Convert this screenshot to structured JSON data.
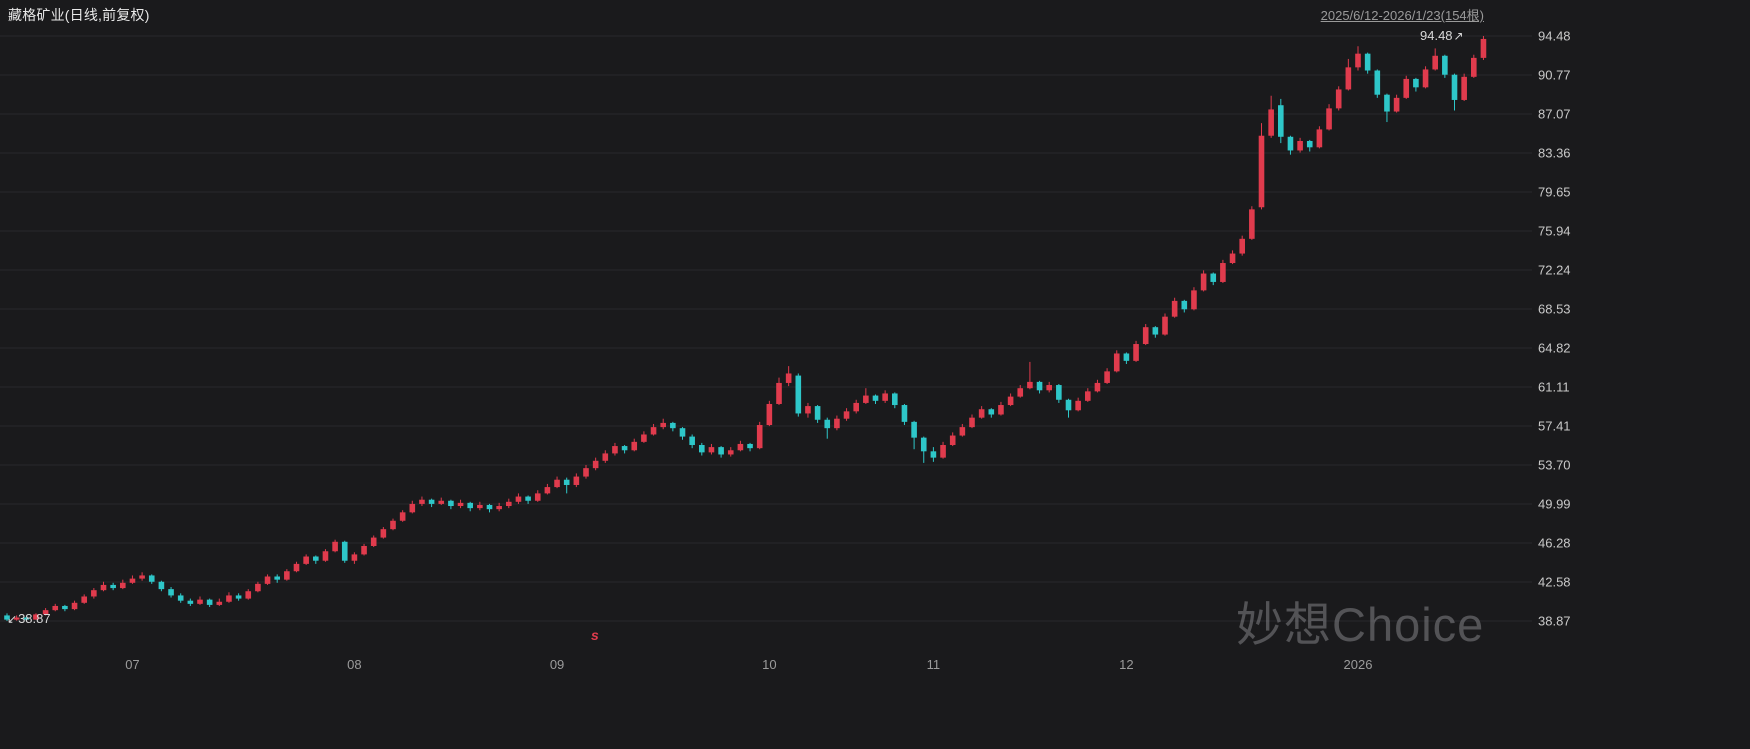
{
  "header": {
    "title": "藏格矿业(日线,前复权)",
    "range": "2025/6/12-2026/1/23(154根)"
  },
  "watermark": "妙想Choice",
  "annotations": {
    "min_label": "38.87",
    "min_arrow": "↙",
    "max_label": "94.48",
    "max_arrow": "↗",
    "event_marker": "s"
  },
  "colors": {
    "up": "#e03b4d",
    "down": "#2ec7c9",
    "background": "#1a1a1c",
    "grid": "#28282c",
    "axis_text": "#c9c9c9",
    "month_text": "#9b9b9b",
    "title_text": "#e8e8e8",
    "link_text": "#9a9a9a",
    "watermark_text": "#8c8c90"
  },
  "chart_data": {
    "type": "candlestick",
    "title": "藏格矿业(日线,前复权)",
    "symbol": "藏格矿业",
    "period": "日线",
    "adjustment": "前复权",
    "date_range": "2025/6/12-2026/1/23",
    "candle_count": 154,
    "y_min": 38.87,
    "y_max": 94.48,
    "min_price": 38.87,
    "max_price": 94.48,
    "grid": true,
    "y_axis_labels": [
      "94.48",
      "90.77",
      "87.07",
      "83.36",
      "79.65",
      "75.94",
      "72.24",
      "68.53",
      "64.82",
      "61.11",
      "57.41",
      "53.70",
      "49.99",
      "46.28",
      "42.58",
      "38.87"
    ],
    "x_tick_labels": [
      "07",
      "08",
      "09",
      "10",
      "11",
      "12",
      "2026"
    ],
    "x_tick_indices": [
      13,
      36,
      57,
      79,
      96,
      116,
      140
    ],
    "ohlc": [
      [
        39.4,
        39.6,
        38.87,
        39.0
      ],
      [
        39.0,
        39.4,
        38.9,
        39.2
      ],
      [
        39.2,
        39.3,
        38.9,
        39.0
      ],
      [
        39.0,
        39.6,
        39.0,
        39.5
      ],
      [
        39.5,
        40.1,
        39.4,
        39.9
      ],
      [
        39.9,
        40.5,
        39.8,
        40.3
      ],
      [
        40.3,
        40.4,
        39.8,
        40.0
      ],
      [
        40.0,
        40.8,
        39.9,
        40.6
      ],
      [
        40.6,
        41.4,
        40.5,
        41.2
      ],
      [
        41.2,
        42.0,
        41.0,
        41.8
      ],
      [
        41.8,
        42.6,
        41.7,
        42.3
      ],
      [
        42.3,
        42.5,
        41.8,
        42.0
      ],
      [
        42.0,
        42.8,
        41.9,
        42.5
      ],
      [
        42.5,
        43.2,
        42.4,
        42.9
      ],
      [
        42.9,
        43.5,
        42.7,
        43.2
      ],
      [
        43.2,
        43.3,
        42.4,
        42.6
      ],
      [
        42.6,
        42.7,
        41.7,
        41.9
      ],
      [
        41.9,
        42.1,
        41.1,
        41.3
      ],
      [
        41.3,
        41.5,
        40.6,
        40.8
      ],
      [
        40.8,
        41.0,
        40.3,
        40.5
      ],
      [
        40.5,
        41.2,
        40.4,
        40.9
      ],
      [
        40.9,
        41.0,
        40.2,
        40.4
      ],
      [
        40.4,
        41.0,
        40.3,
        40.7
      ],
      [
        40.7,
        41.6,
        40.6,
        41.3
      ],
      [
        41.3,
        41.5,
        40.8,
        41.0
      ],
      [
        41.0,
        41.9,
        40.9,
        41.7
      ],
      [
        41.7,
        42.6,
        41.6,
        42.4
      ],
      [
        42.4,
        43.3,
        42.3,
        43.1
      ],
      [
        43.1,
        43.3,
        42.5,
        42.8
      ],
      [
        42.8,
        43.8,
        42.7,
        43.6
      ],
      [
        43.6,
        44.5,
        43.5,
        44.3
      ],
      [
        44.3,
        45.2,
        44.2,
        45.0
      ],
      [
        45.0,
        45.1,
        44.3,
        44.6
      ],
      [
        44.6,
        45.7,
        44.5,
        45.5
      ],
      [
        45.5,
        46.6,
        45.4,
        46.4
      ],
      [
        46.4,
        46.5,
        44.4,
        44.6
      ],
      [
        44.6,
        45.4,
        44.3,
        45.2
      ],
      [
        45.2,
        46.2,
        45.1,
        46.0
      ],
      [
        46.0,
        47.0,
        45.9,
        46.8
      ],
      [
        46.8,
        47.8,
        46.7,
        47.6
      ],
      [
        47.6,
        48.6,
        47.5,
        48.4
      ],
      [
        48.4,
        49.4,
        48.3,
        49.2
      ],
      [
        49.2,
        50.3,
        49.1,
        50.0
      ],
      [
        50.0,
        50.7,
        49.8,
        50.4
      ],
      [
        50.4,
        50.5,
        49.7,
        50.0
      ],
      [
        50.0,
        50.6,
        49.9,
        50.3
      ],
      [
        50.3,
        50.4,
        49.5,
        49.8
      ],
      [
        49.8,
        50.4,
        49.6,
        50.1
      ],
      [
        50.1,
        50.2,
        49.3,
        49.6
      ],
      [
        49.6,
        50.2,
        49.4,
        49.9
      ],
      [
        49.9,
        50.0,
        49.2,
        49.5
      ],
      [
        49.5,
        50.1,
        49.3,
        49.8
      ],
      [
        49.8,
        50.5,
        49.6,
        50.2
      ],
      [
        50.2,
        51.0,
        50.0,
        50.7
      ],
      [
        50.7,
        50.8,
        50.0,
        50.3
      ],
      [
        50.3,
        51.3,
        50.2,
        51.0
      ],
      [
        51.0,
        51.9,
        50.9,
        51.6
      ],
      [
        51.6,
        52.6,
        51.5,
        52.3
      ],
      [
        52.3,
        52.5,
        51.0,
        51.8
      ],
      [
        51.8,
        52.9,
        51.6,
        52.6
      ],
      [
        52.6,
        53.7,
        52.4,
        53.4
      ],
      [
        53.4,
        54.4,
        53.2,
        54.1
      ],
      [
        54.1,
        55.1,
        53.9,
        54.8
      ],
      [
        54.8,
        55.8,
        54.6,
        55.5
      ],
      [
        55.5,
        55.6,
        54.8,
        55.1
      ],
      [
        55.1,
        56.2,
        55.0,
        55.9
      ],
      [
        55.9,
        56.9,
        55.8,
        56.6
      ],
      [
        56.6,
        57.6,
        56.5,
        57.3
      ],
      [
        57.3,
        58.1,
        57.1,
        57.7
      ],
      [
        57.7,
        57.8,
        56.9,
        57.2
      ],
      [
        57.2,
        57.3,
        56.1,
        56.4
      ],
      [
        56.4,
        56.6,
        55.3,
        55.6
      ],
      [
        55.6,
        55.8,
        54.6,
        54.9
      ],
      [
        54.9,
        55.7,
        54.7,
        55.4
      ],
      [
        55.4,
        55.5,
        54.4,
        54.7
      ],
      [
        54.7,
        55.4,
        54.5,
        55.1
      ],
      [
        55.1,
        56.0,
        55.0,
        55.7
      ],
      [
        55.7,
        55.8,
        55.0,
        55.3
      ],
      [
        55.3,
        57.8,
        55.2,
        57.5
      ],
      [
        57.5,
        59.8,
        57.4,
        59.5
      ],
      [
        59.5,
        62.0,
        59.4,
        61.5
      ],
      [
        61.5,
        63.1,
        61.2,
        62.4
      ],
      [
        62.2,
        62.4,
        58.3,
        58.6
      ],
      [
        58.6,
        59.6,
        58.2,
        59.3
      ],
      [
        59.3,
        59.4,
        57.7,
        58.0
      ],
      [
        58.0,
        58.2,
        56.2,
        57.2
      ],
      [
        57.2,
        58.4,
        57.0,
        58.1
      ],
      [
        58.1,
        59.1,
        57.9,
        58.8
      ],
      [
        58.8,
        59.9,
        58.6,
        59.6
      ],
      [
        59.6,
        61.0,
        59.5,
        60.3
      ],
      [
        60.3,
        60.4,
        59.5,
        59.8
      ],
      [
        59.8,
        60.8,
        59.6,
        60.5
      ],
      [
        60.5,
        60.6,
        59.1,
        59.4
      ],
      [
        59.4,
        59.5,
        57.5,
        57.8
      ],
      [
        57.8,
        57.9,
        55.2,
        56.3
      ],
      [
        56.3,
        56.4,
        53.9,
        55.0
      ],
      [
        55.0,
        55.4,
        54.0,
        54.4
      ],
      [
        54.4,
        55.9,
        54.3,
        55.6
      ],
      [
        55.6,
        56.8,
        55.5,
        56.5
      ],
      [
        56.5,
        57.6,
        56.4,
        57.3
      ],
      [
        57.3,
        58.5,
        57.2,
        58.2
      ],
      [
        58.2,
        59.3,
        58.1,
        59.0
      ],
      [
        59.0,
        59.1,
        58.2,
        58.5
      ],
      [
        58.5,
        59.7,
        58.4,
        59.4
      ],
      [
        59.4,
        60.5,
        59.3,
        60.2
      ],
      [
        60.2,
        61.3,
        60.1,
        61.0
      ],
      [
        61.0,
        63.5,
        60.9,
        61.6
      ],
      [
        61.6,
        61.7,
        60.5,
        60.8
      ],
      [
        60.8,
        61.6,
        60.6,
        61.3
      ],
      [
        61.3,
        61.4,
        59.6,
        59.9
      ],
      [
        59.9,
        60.0,
        58.2,
        58.9
      ],
      [
        58.9,
        60.1,
        58.8,
        59.8
      ],
      [
        59.8,
        61.0,
        59.7,
        60.7
      ],
      [
        60.7,
        61.8,
        60.6,
        61.5
      ],
      [
        61.5,
        62.9,
        61.4,
        62.6
      ],
      [
        62.6,
        64.6,
        62.5,
        64.3
      ],
      [
        64.3,
        64.4,
        63.3,
        63.6
      ],
      [
        63.6,
        65.5,
        63.5,
        65.2
      ],
      [
        65.2,
        67.1,
        65.1,
        66.8
      ],
      [
        66.8,
        66.9,
        65.8,
        66.1
      ],
      [
        66.1,
        68.1,
        66.0,
        67.8
      ],
      [
        67.8,
        69.6,
        67.7,
        69.3
      ],
      [
        69.3,
        69.4,
        68.2,
        68.5
      ],
      [
        68.5,
        70.6,
        68.4,
        70.3
      ],
      [
        70.3,
        72.2,
        70.2,
        71.9
      ],
      [
        71.9,
        72.0,
        70.8,
        71.1
      ],
      [
        71.1,
        73.2,
        71.0,
        72.9
      ],
      [
        72.9,
        74.1,
        72.8,
        73.8
      ],
      [
        73.8,
        75.5,
        73.6,
        75.2
      ],
      [
        75.2,
        78.3,
        75.1,
        78.0
      ],
      [
        78.2,
        86.2,
        78.0,
        85.0
      ],
      [
        85.0,
        88.8,
        84.8,
        87.5
      ],
      [
        87.9,
        88.5,
        84.3,
        84.9
      ],
      [
        84.9,
        85.0,
        83.2,
        83.6
      ],
      [
        83.6,
        84.8,
        83.4,
        84.5
      ],
      [
        84.5,
        84.6,
        83.5,
        83.9
      ],
      [
        83.9,
        85.9,
        83.8,
        85.6
      ],
      [
        85.6,
        88.0,
        85.5,
        87.6
      ],
      [
        87.6,
        89.7,
        87.4,
        89.4
      ],
      [
        89.4,
        92.3,
        89.3,
        91.5
      ],
      [
        91.5,
        93.5,
        91.2,
        92.8
      ],
      [
        92.8,
        92.9,
        90.9,
        91.2
      ],
      [
        91.2,
        91.3,
        88.6,
        88.9
      ],
      [
        88.9,
        89.0,
        86.3,
        87.3
      ],
      [
        87.3,
        88.9,
        87.2,
        88.6
      ],
      [
        88.6,
        90.7,
        88.5,
        90.4
      ],
      [
        90.4,
        90.5,
        89.2,
        89.6
      ],
      [
        89.6,
        91.6,
        89.5,
        91.3
      ],
      [
        91.3,
        93.3,
        91.2,
        92.6
      ],
      [
        92.6,
        92.7,
        90.5,
        90.8
      ],
      [
        90.8,
        90.9,
        87.4,
        88.4
      ],
      [
        88.4,
        90.9,
        88.3,
        90.6
      ],
      [
        90.6,
        92.7,
        90.5,
        92.4
      ],
      [
        92.4,
        94.48,
        92.2,
        94.2
      ]
    ]
  }
}
